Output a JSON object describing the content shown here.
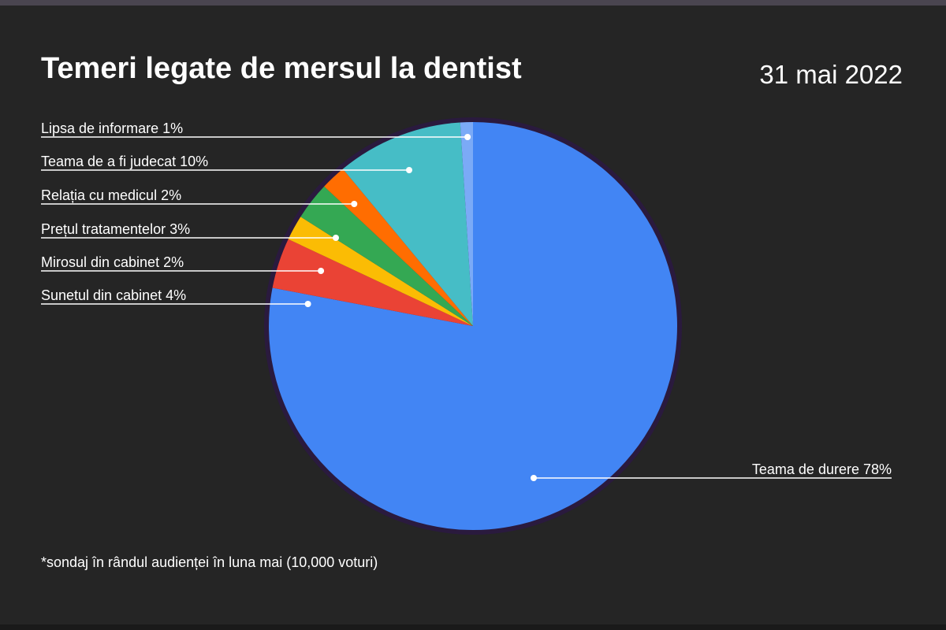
{
  "header": {
    "title": "Temeri legate de mersul la dentist",
    "date": "31 mai 2022"
  },
  "footnote": "*sondaj în rândul audienței în luna mai (10,000 voturi)",
  "chart_data": {
    "type": "pie",
    "title": "Temeri legate de mersul la dentist",
    "subtitle": "31 mai 2022",
    "slices": [
      {
        "label": "Teama de durere 78%",
        "value": 78,
        "color": "#4285f4"
      },
      {
        "label": "Sunetul din cabinet 4%",
        "value": 4,
        "color": "#ea4335"
      },
      {
        "label": "Mirosul din cabinet 2%",
        "value": 2,
        "color": "#fbbc04"
      },
      {
        "label": "Prețul tratamentelor 3%",
        "value": 3,
        "color": "#34a853"
      },
      {
        "label": "Relația cu medicul 2%",
        "value": 2,
        "color": "#ff6d01"
      },
      {
        "label": "Teama de a fi judecat 10%",
        "value": 10,
        "color": "#46bdc6"
      },
      {
        "label": "Lipsa de informare 1%",
        "value": 1,
        "color": "#7baaf7"
      }
    ],
    "border_color": "#2a1a3e",
    "legend": "none",
    "label_placement": "callout"
  }
}
